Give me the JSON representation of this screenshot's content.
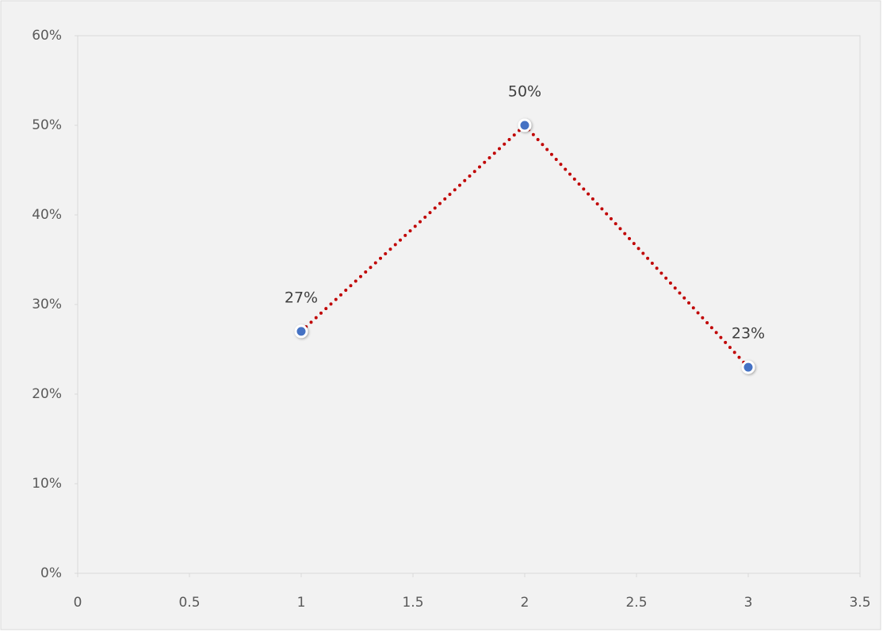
{
  "chart_data": {
    "type": "scatter-line",
    "x": [
      1,
      2,
      3
    ],
    "values": [
      27,
      50,
      23
    ],
    "value_labels": [
      "27%",
      "50%",
      "23%"
    ],
    "color": "#c00000",
    "marker_color": "#4472c4",
    "line_style": "dotted",
    "xlim": [
      0,
      3.5
    ],
    "xticks": [
      0,
      0.5,
      1,
      1.5,
      2,
      2.5,
      3,
      3.5
    ],
    "ylim": [
      0,
      60
    ],
    "yticks": [
      {
        "value": 0,
        "label": "0%"
      },
      {
        "value": 10,
        "label": "10%"
      },
      {
        "value": 20,
        "label": "20%"
      },
      {
        "value": 30,
        "label": "30%"
      },
      {
        "value": 40,
        "label": "40%"
      },
      {
        "value": 50,
        "label": "50%"
      },
      {
        "value": 60,
        "label": "60%"
      }
    ]
  }
}
